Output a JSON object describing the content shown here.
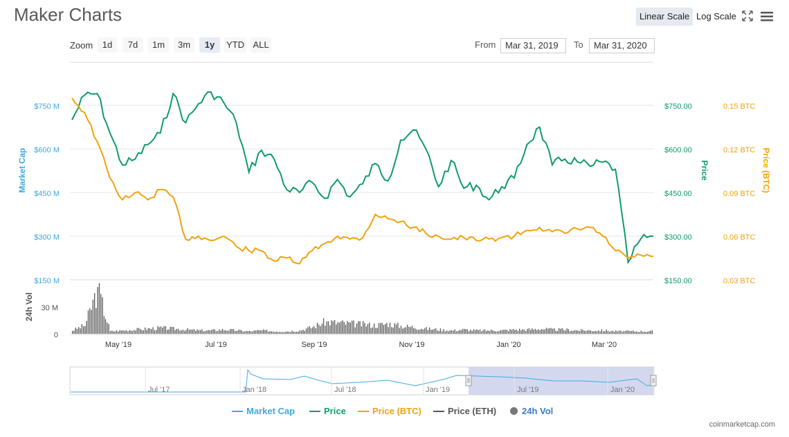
{
  "header": {
    "title": "Maker Charts",
    "linear_label": "Linear Scale",
    "log_label": "Log Scale",
    "zoom_label": "Zoom",
    "zoom_buttons": [
      "1d",
      "7d",
      "1m",
      "3m",
      "1y",
      "YTD",
      "ALL"
    ],
    "zoom_active": "1y",
    "from_label": "From",
    "from_value": "Mar 31, 2019",
    "to_label": "To",
    "to_value": "Mar 31, 2020"
  },
  "legend": {
    "market_cap": "Market Cap",
    "price": "Price",
    "price_btc": "Price (BTC)",
    "price_eth": "Price (ETH)",
    "vol": "24h Vol"
  },
  "credit": "coinmarketcap.com",
  "colors": {
    "market_cap": "#3da9e0",
    "price": "#0f9a6e",
    "price_btc": "#f2a20b",
    "price_eth": "#555555",
    "vol": "#555555",
    "navigator_fill": "#c5cbe8"
  },
  "chart_data": {
    "type": "line",
    "x_range": [
      "2019-03-31",
      "2020-03-31"
    ],
    "x_ticks": [
      "May '19",
      "Jul '19",
      "Sep '19",
      "Nov '19",
      "Jan '20",
      "Mar '20"
    ],
    "axes": {
      "market_cap": {
        "label": "Market Cap",
        "ticks": [
          "$150 M",
          "$300 M",
          "$450 M",
          "$600 M",
          "$750 M"
        ]
      },
      "price": {
        "label": "Price",
        "ticks": [
          "$150.00",
          "$300.00",
          "$450.00",
          "$600.00",
          "$750.00"
        ]
      },
      "price_btc": {
        "label": "Price (BTC)",
        "ticks": [
          "0.03 BTC",
          "0.06 BTC",
          "0.09 BTC",
          "0.12 BTC",
          "0.15 BTC"
        ]
      },
      "volume": {
        "label": "24h Vol",
        "ticks": [
          "0",
          "30 M"
        ]
      }
    },
    "price_ylim": [
      150,
      800
    ],
    "btc_ylim": [
      0.03,
      0.16
    ],
    "vol_ylim": [
      0,
      60
    ],
    "series": [
      {
        "name": "Price",
        "values": [
          700,
          785,
          790,
          655,
          545,
          565,
          615,
          655,
          790,
          690,
          755,
          795,
          760,
          690,
          520,
          595,
          565,
          460,
          450,
          485,
          430,
          495,
          435,
          480,
          550,
          490,
          630,
          665,
          600,
          470,
          560,
          465,
          475,
          425,
          470,
          500,
          615,
          675,
          545,
          565,
          555,
          540,
          555,
          530,
          210,
          290,
          300
        ]
      },
      {
        "name": "Price (BTC)",
        "values": [
          0.155,
          0.145,
          0.125,
          0.1,
          0.085,
          0.09,
          0.085,
          0.092,
          0.087,
          0.058,
          0.06,
          0.057,
          0.06,
          0.053,
          0.05,
          0.05,
          0.043,
          0.045,
          0.041,
          0.05,
          0.055,
          0.06,
          0.058,
          0.059,
          0.075,
          0.072,
          0.07,
          0.066,
          0.062,
          0.06,
          0.058,
          0.059,
          0.057,
          0.058,
          0.059,
          0.06,
          0.064,
          0.066,
          0.063,
          0.062,
          0.065,
          0.066,
          0.06,
          0.05,
          0.045,
          0.047,
          0.046
        ]
      },
      {
        "name": "24h Vol",
        "values": [
          4,
          10,
          52,
          3,
          4,
          5,
          6,
          7,
          6,
          5,
          4,
          4,
          5,
          4,
          3,
          4,
          3,
          3,
          4,
          8,
          14,
          13,
          12,
          11,
          10,
          12,
          9,
          8,
          6,
          5,
          4,
          5,
          4,
          4,
          4,
          5,
          5,
          6,
          5,
          5,
          4,
          4,
          4,
          3,
          3,
          3,
          3
        ]
      }
    ]
  },
  "navigator": {
    "ticks": [
      "Jul '17",
      "Jan '18",
      "Jul '18",
      "Jan '19",
      "Jul '19",
      "Jan '20"
    ]
  }
}
